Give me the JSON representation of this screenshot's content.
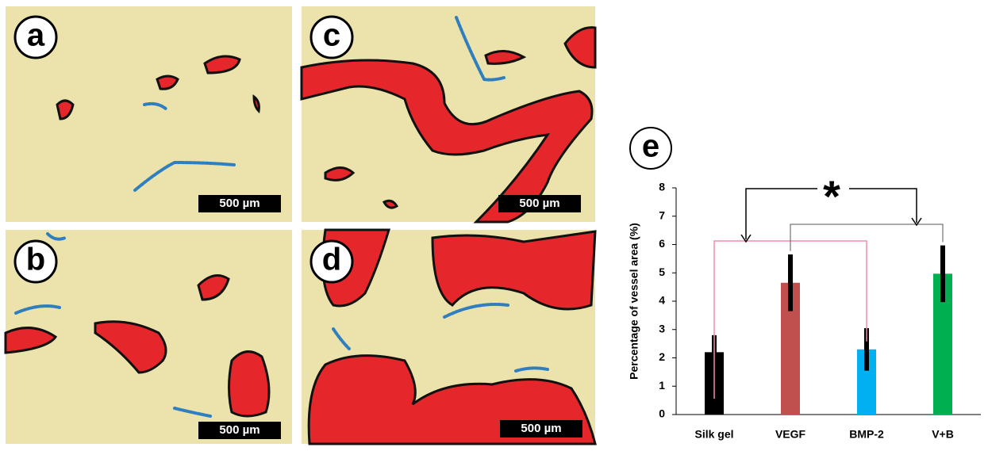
{
  "panels": [
    {
      "label": "a",
      "scale_bar": "500 µm"
    },
    {
      "label": "b",
      "scale_bar": "500 µm"
    },
    {
      "label": "c",
      "scale_bar": "500 µm"
    },
    {
      "label": "d",
      "scale_bar": "500 µm"
    }
  ],
  "chart_data": {
    "type": "bar",
    "panel_label": "e",
    "y_label": "Percentage of vessel area (%)",
    "categories": [
      "Silk gel",
      "VEGF",
      "BMP-2",
      "V+B"
    ],
    "values": [
      2.2,
      4.65,
      2.3,
      4.97
    ],
    "errors": [
      0.6,
      1.0,
      0.75,
      1.0
    ],
    "colors": [
      "#000000",
      "#c0504d",
      "#00b0f0",
      "#00b050"
    ],
    "ylim": [
      0,
      8
    ],
    "yticks": [
      0,
      1,
      2,
      3,
      4,
      5,
      6,
      7,
      8
    ],
    "annotation": "*"
  }
}
